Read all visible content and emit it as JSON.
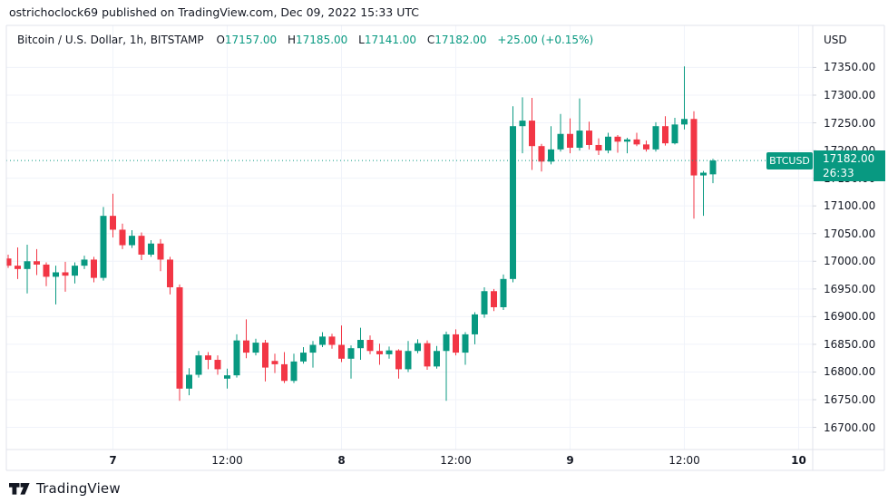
{
  "attribution": "ostrichoclock69 published on TradingView.com, Dec 09, 2022 15:33 UTC",
  "legend": {
    "symbol_title": "Bitcoin / U.S. Dollar, 1h, BITSTAMP",
    "ohlc": [
      {
        "label": "O",
        "value": "17157.00"
      },
      {
        "label": "H",
        "value": "17185.00"
      },
      {
        "label": "L",
        "value": "17141.00"
      },
      {
        "label": "C",
        "value": "17182.00"
      }
    ],
    "change": "+25.00 (+0.15%)"
  },
  "price_axis": {
    "currency_label": "USD",
    "tick_labels": [
      "17350.00",
      "17300.00",
      "17250.00",
      "17200.00",
      "17150.00",
      "17100.00",
      "17050.00",
      "17000.00",
      "16950.00",
      "16900.00",
      "16850.00",
      "16800.00",
      "16750.00",
      "16700.00"
    ],
    "last_price_label": {
      "symbol": "BTCUSD",
      "price": "17182.00",
      "countdown": "26:33"
    }
  },
  "time_axis": {
    "ticks": [
      {
        "label": "7",
        "candle_index": 11,
        "major": true
      },
      {
        "label": "12:00",
        "candle_index": 23,
        "major": false
      },
      {
        "label": "8",
        "candle_index": 35,
        "major": true
      },
      {
        "label": "12:00",
        "candle_index": 47,
        "major": false
      },
      {
        "label": "9",
        "candle_index": 59,
        "major": true
      },
      {
        "label": "12:00",
        "candle_index": 71,
        "major": false
      },
      {
        "label": "10",
        "candle_index": 83,
        "major": true
      }
    ]
  },
  "footer": {
    "brand": "TradingView"
  },
  "colors": {
    "up": "#089981",
    "down": "#F23645",
    "last_price": "#089981",
    "grid": "#f0f3fa",
    "border": "#e0e3eb",
    "text": "#131722"
  },
  "chart_data": {
    "type": "candlestick",
    "symbol": "BTCUSD",
    "exchange": "BITSTAMP",
    "interval": "1h",
    "title": "Bitcoin / U.S. Dollar, 1h, BITSTAMP",
    "ylabel": "USD",
    "ylim": [
      16660,
      17426
    ],
    "price_gridlines": [
      17350,
      17300,
      17250,
      17200,
      17150,
      17100,
      17050,
      17000,
      16950,
      16900,
      16850,
      16800,
      16750,
      16700
    ],
    "grid": true,
    "legend_position": "top-left",
    "last_price": 17182.0,
    "change": 25.0,
    "change_pct": 0.15,
    "ohlc_order": [
      "open",
      "high",
      "low",
      "close"
    ],
    "candles": [
      [
        17005,
        17012,
        16988,
        16992
      ],
      [
        16992,
        17025,
        16968,
        16986
      ],
      [
        16986,
        17030,
        16942,
        17000
      ],
      [
        17000,
        17022,
        16975,
        16994
      ],
      [
        16994,
        16998,
        16955,
        16972
      ],
      [
        16972,
        16992,
        16922,
        16980
      ],
      [
        16980,
        16999,
        16945,
        16974
      ],
      [
        16974,
        16998,
        16960,
        16992
      ],
      [
        16992,
        17010,
        16986,
        17003
      ],
      [
        17003,
        17008,
        16962,
        16970
      ],
      [
        16970,
        17098,
        16965,
        17082
      ],
      [
        17082,
        17122,
        17043,
        17057
      ],
      [
        17057,
        17068,
        17022,
        17029
      ],
      [
        17029,
        17056,
        17024,
        17046
      ],
      [
        17046,
        17052,
        17002,
        17012
      ],
      [
        17012,
        17038,
        17008,
        17032
      ],
      [
        17032,
        17040,
        16982,
        17003
      ],
      [
        17003,
        17008,
        16940,
        16953
      ],
      [
        16953,
        16958,
        16748,
        16770
      ],
      [
        16770,
        16807,
        16758,
        16795
      ],
      [
        16795,
        16838,
        16790,
        16830
      ],
      [
        16830,
        16836,
        16805,
        16822
      ],
      [
        16822,
        16830,
        16795,
        16805
      ],
      [
        16788,
        16806,
        16770,
        16794
      ],
      [
        16794,
        16868,
        16790,
        16857
      ],
      [
        16857,
        16895,
        16825,
        16835
      ],
      [
        16835,
        16860,
        16830,
        16853
      ],
      [
        16853,
        16858,
        16783,
        16808
      ],
      [
        16820,
        16833,
        16798,
        16814
      ],
      [
        16814,
        16836,
        16780,
        16784
      ],
      [
        16784,
        16833,
        16780,
        16819
      ],
      [
        16819,
        16845,
        16815,
        16835
      ],
      [
        16835,
        16856,
        16808,
        16849
      ],
      [
        16849,
        16872,
        16845,
        16864
      ],
      [
        16864,
        16869,
        16842,
        16849
      ],
      [
        16849,
        16884,
        16818,
        16824
      ],
      [
        16824,
        16848,
        16788,
        16843
      ],
      [
        16843,
        16880,
        16822,
        16858
      ],
      [
        16858,
        16866,
        16832,
        16838
      ],
      [
        16838,
        16851,
        16813,
        16832
      ],
      [
        16832,
        16846,
        16824,
        16839
      ],
      [
        16839,
        16841,
        16788,
        16805
      ],
      [
        16805,
        16856,
        16800,
        16838
      ],
      [
        16838,
        16859,
        16834,
        16852
      ],
      [
        16852,
        16857,
        16804,
        16810
      ],
      [
        16810,
        16847,
        16806,
        16838
      ],
      [
        16838,
        16873,
        16748,
        16868
      ],
      [
        16868,
        16877,
        16830,
        16835
      ],
      [
        16835,
        16872,
        16813,
        16868
      ],
      [
        16868,
        16908,
        16850,
        16904
      ],
      [
        16904,
        16953,
        16898,
        16946
      ],
      [
        16946,
        16950,
        16910,
        16917
      ],
      [
        16917,
        16976,
        16912,
        16968
      ],
      [
        16968,
        17280,
        16962,
        17244
      ],
      [
        17244,
        17296,
        17195,
        17254
      ],
      [
        17254,
        17295,
        17165,
        17208
      ],
      [
        17208,
        17212,
        17162,
        17180
      ],
      [
        17180,
        17244,
        17175,
        17202
      ],
      [
        17202,
        17266,
        17198,
        17230
      ],
      [
        17230,
        17258,
        17195,
        17205
      ],
      [
        17205,
        17294,
        17200,
        17236
      ],
      [
        17236,
        17252,
        17202,
        17210
      ],
      [
        17210,
        17222,
        17192,
        17200
      ],
      [
        17200,
        17232,
        17195,
        17225
      ],
      [
        17225,
        17228,
        17196,
        17216
      ],
      [
        17216,
        17223,
        17195,
        17220
      ],
      [
        17220,
        17232,
        17208,
        17211
      ],
      [
        17211,
        17218,
        17198,
        17202
      ],
      [
        17202,
        17251,
        17198,
        17244
      ],
      [
        17244,
        17262,
        17209,
        17213
      ],
      [
        17213,
        17259,
        17211,
        17247
      ],
      [
        17247,
        17352,
        17238,
        17257
      ],
      [
        17257,
        17271,
        17077,
        17155
      ],
      [
        17155,
        17163,
        17082,
        17160
      ],
      [
        17157,
        17185,
        17141,
        17182
      ]
    ]
  }
}
